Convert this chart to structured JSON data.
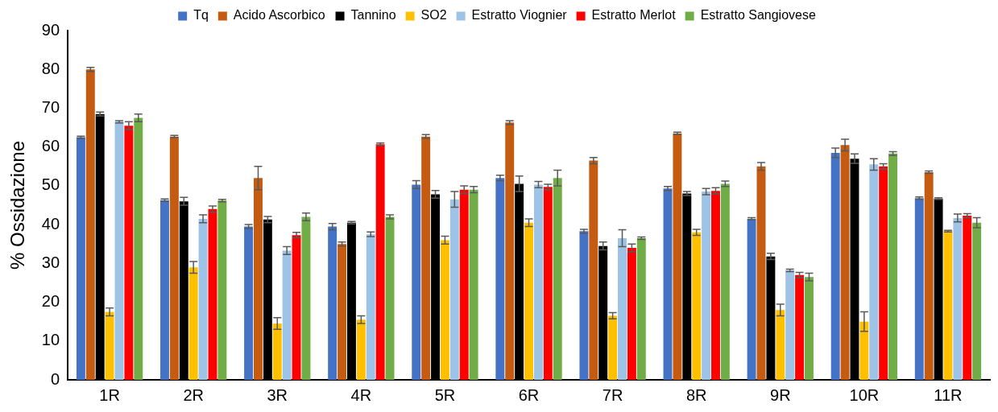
{
  "chart_data": {
    "type": "bar",
    "ylabel": "% Ossidazione",
    "categories": [
      "1R",
      "2R",
      "3R",
      "4R",
      "5R",
      "6R",
      "7R",
      "8R",
      "9R",
      "10R",
      "11R"
    ],
    "series": [
      {
        "name": "Tq",
        "color": "#4472c4",
        "values": [
          62.5,
          46.3,
          39.5,
          39.5,
          50.3,
          52,
          38.3,
          49.3,
          41.5,
          58.5,
          46.8
        ],
        "errors": [
          0.3,
          0.3,
          0.5,
          0.8,
          1,
          0.7,
          0.5,
          0.5,
          0.3,
          1.2,
          0.3
        ]
      },
      {
        "name": "Acido Ascorbico",
        "color": "#c55a11",
        "values": [
          80,
          62.7,
          52,
          35,
          62.7,
          66.3,
          56.5,
          63.5,
          55,
          60.5,
          53.5
        ],
        "errors": [
          0.5,
          0.3,
          3,
          0.5,
          0.5,
          0.5,
          0.8,
          0.3,
          1,
          1.5,
          0.3
        ]
      },
      {
        "name": "Tannino",
        "color": "#000000",
        "values": [
          68.5,
          46,
          41.3,
          40.5,
          47.8,
          50.5,
          34.5,
          48,
          31.8,
          57,
          46.7
        ],
        "errors": [
          0.5,
          1,
          0.8,
          0.3,
          1,
          2,
          1,
          0.5,
          0.8,
          1.2,
          0.2
        ]
      },
      {
        "name": "SO2",
        "color": "#ffc000",
        "values": [
          17.5,
          29,
          14.5,
          15.5,
          36,
          40.5,
          16.5,
          38,
          18,
          15,
          38.3
        ],
        "errors": [
          1,
          1.5,
          1.5,
          1,
          1,
          1,
          0.8,
          0.8,
          1.5,
          2.5,
          0.2
        ]
      },
      {
        "name": "Estratto Viognier",
        "color": "#9dc3e6",
        "values": [
          66.5,
          41.5,
          33.3,
          37.5,
          46.5,
          50.3,
          36.5,
          48.5,
          28.2,
          55.5,
          41.7
        ],
        "errors": [
          0.3,
          1,
          1,
          0.6,
          2,
          0.8,
          2.2,
          0.8,
          0.3,
          1.5,
          1
        ]
      },
      {
        "name": "Estratto Merlot",
        "color": "#ff0000",
        "values": [
          65.5,
          44,
          37.3,
          60.7,
          49,
          49.7,
          34,
          48.7,
          27,
          55,
          42.3
        ],
        "errors": [
          1,
          0.8,
          0.7,
          0.3,
          1,
          0.7,
          1,
          0.8,
          0.7,
          0.7,
          0.5
        ]
      },
      {
        "name": "Estratto Sangiovese",
        "color": "#70ad47",
        "values": [
          67.5,
          46.2,
          42,
          42,
          49,
          52,
          36.5,
          50.5,
          26.5,
          58.3,
          40.5
        ],
        "errors": [
          1,
          0.3,
          1,
          0.5,
          0.8,
          2,
          0.3,
          0.7,
          1,
          0.5,
          1.3
        ]
      }
    ],
    "ylim": [
      0,
      90
    ],
    "yticks": [
      0,
      10,
      20,
      30,
      40,
      50,
      60,
      70,
      80,
      90
    ],
    "grid": false,
    "legend": "top"
  }
}
